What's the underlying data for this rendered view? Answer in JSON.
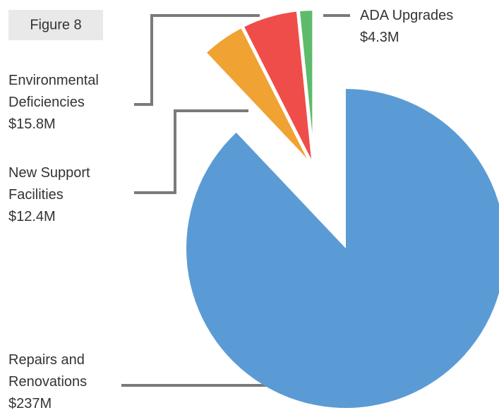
{
  "chart_data": {
    "type": "pie",
    "title": "Figure 8",
    "categories": [
      "Repairs and Renovations",
      "New Support Facilities",
      "Environmental Deficiencies",
      "ADA Upgrades"
    ],
    "values": [
      237,
      12.4,
      15.8,
      4.3
    ],
    "value_labels": [
      "$237M",
      "$12.4M",
      "$15.8M",
      "$4.3M"
    ],
    "colors": [
      "#5b9bd5",
      "#f0a232",
      "#ef4d4a",
      "#5dbb6b"
    ]
  }
}
